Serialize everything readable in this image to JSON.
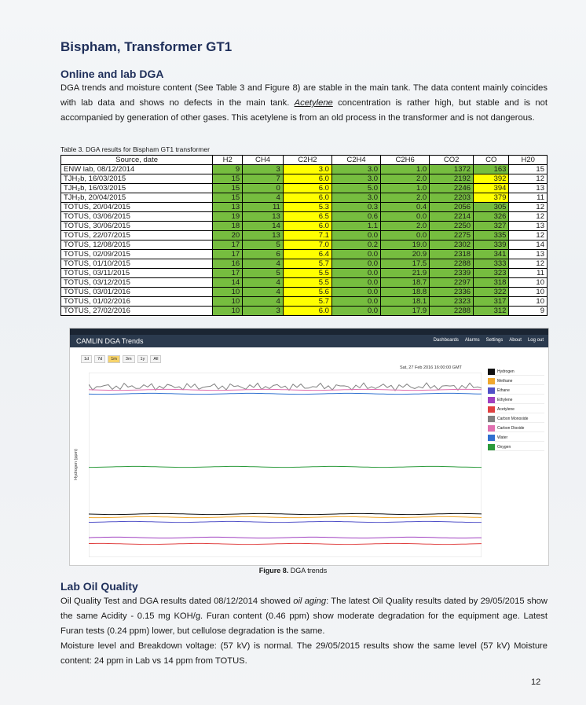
{
  "header": {
    "title": "Bispham, Transformer GT1"
  },
  "online_section": {
    "heading": "Online and lab DGA",
    "paragraph": [
      "DGA trends and moisture content (See Table 3 and Figure 8) are stable in the main tank. The data content mainly coincides with lab data and shows no defects in the main tank. ",
      "Acetylene",
      " concentration is rather high, but stable and is not accompanied by generation of other gases. This acetylene is from an old process in the transformer and is not dangerous."
    ]
  },
  "table": {
    "caption": "Table 3. DGA results for Bispham GT1 transformer",
    "header": [
      "Source, date",
      "H2",
      "CH4",
      "C2H2",
      "C2H4",
      "C2H6",
      "CO2",
      "CO",
      "H20"
    ],
    "column_fills": [
      "#ffffff",
      "#76bd3f",
      "#76bd3f",
      "#ffff00",
      "#76bd3f",
      "#76bd3f",
      "#76bd3f",
      "#76bd3f",
      "#ffffff"
    ],
    "alert_fill": "#ffff00",
    "alert_cells": [
      [
        1,
        7
      ],
      [
        2,
        7
      ],
      [
        3,
        7
      ]
    ],
    "rows": [
      [
        "ENW lab, 08/12/2014",
        "9",
        "3",
        "3.0",
        "3.0",
        "1.0",
        "1372",
        "163",
        "15"
      ],
      [
        "TJH₂b, 16/03/2015",
        "15",
        "7",
        "6.0",
        "3.0",
        "2.0",
        "2192",
        "392",
        "12"
      ],
      [
        "TJH₂b, 16/03/2015",
        "15",
        "0",
        "6.0",
        "5.0",
        "1.0",
        "2246",
        "394",
        "13"
      ],
      [
        "TJH₂b, 20/04/2015",
        "15",
        "4",
        "6.0",
        "3.0",
        "2.0",
        "2203",
        "379",
        "11"
      ],
      [
        "TOTUS, 20/04/2015",
        "13",
        "11",
        "5.3",
        "0.3",
        "0.4",
        "2056",
        "305",
        "12"
      ],
      [
        "TOTUS, 03/06/2015",
        "19",
        "13",
        "6.5",
        "0.6",
        "0.0",
        "2214",
        "326",
        "12"
      ],
      [
        "TOTUS, 30/06/2015",
        "18",
        "14",
        "6.0",
        "1.1",
        "2.0",
        "2250",
        "327",
        "13"
      ],
      [
        "TOTUS, 22/07/2015",
        "20",
        "13",
        "7.1",
        "0.0",
        "0.0",
        "2275",
        "335",
        "12"
      ],
      [
        "TOTUS, 12/08/2015",
        "17",
        "5",
        "7.0",
        "0.2",
        "19.0",
        "2302",
        "339",
        "14"
      ],
      [
        "TOTUS, 02/09/2015",
        "17",
        "6",
        "6.4",
        "0.0",
        "20.9",
        "2318",
        "341",
        "13"
      ],
      [
        "TOTUS, 01/10/2015",
        "16",
        "4",
        "5.7",
        "0.0",
        "17.5",
        "2288",
        "333",
        "12"
      ],
      [
        "TOTUS, 03/11/2015",
        "17",
        "5",
        "5.5",
        "0.0",
        "21.9",
        "2339",
        "323",
        "11"
      ],
      [
        "TOTUS, 03/12/2015",
        "14",
        "4",
        "5.5",
        "0.0",
        "18.7",
        "2297",
        "318",
        "10"
      ],
      [
        "TOTUS, 03/01/2016",
        "10",
        "4",
        "5.6",
        "0.0",
        "18.8",
        "2336",
        "322",
        "10"
      ],
      [
        "TOTUS, 01/02/2016",
        "10",
        "4",
        "5.7",
        "0.0",
        "18.1",
        "2323",
        "317",
        "10"
      ],
      [
        "TOTUS, 27/02/2016",
        "10",
        "3",
        "6.0",
        "0.0",
        "17.9",
        "2288",
        "312",
        "9"
      ]
    ]
  },
  "figure": {
    "app_title": "CAMLIN DGA Trends",
    "nav": [
      "Dashboards",
      "Alarms",
      "Settings",
      "About",
      "Log out"
    ],
    "ranges": [
      "1d",
      "7d",
      "1m",
      "3m",
      "1y",
      "All"
    ],
    "timestamp": "Sat, 27 Feb 2016 16:00:00 GMT",
    "y_label": "Hydrogen (ppm)",
    "legend": [
      {
        "name": "Hydrogen",
        "color": "#111111"
      },
      {
        "name": "Methane",
        "color": "#f0a830"
      },
      {
        "name": "Ethane",
        "color": "#5050c8"
      },
      {
        "name": "Ethylene",
        "color": "#a040c0"
      },
      {
        "name": "Acetylene",
        "color": "#e04040"
      },
      {
        "name": "Carbon Monoxide",
        "color": "#808080"
      },
      {
        "name": "Carbon Dioxide",
        "color": "#e070b0"
      },
      {
        "name": "Water",
        "color": "#3070d0"
      },
      {
        "name": "Oxygen",
        "color": "#2a9a3a"
      }
    ],
    "caption_label": "Figure 8.",
    "caption_text": " DGA trends"
  },
  "oil_section": {
    "heading": "Lab Oil Quality",
    "paragraph_1": [
      "Oil Quality Test and DGA results dated 08/12/2014 showed ",
      "oil aging",
      ": The latest Oil Quality results dated by 29/05/2015 show the same Acidity - 0.15 mg KOH/g. Furan content (0.46 ppm) show moderate degradation for the equipment age. Latest Furan tests (0.24 ppm) lower, but cellulose degradation is the same."
    ],
    "paragraph_2": "Moisture level and Breakdown voltage: (57 kV) is normal. The 29/05/2015 results show the same level (57 kV) Moisture content: 24 ppm in Lab vs 14 ppm from TOTUS."
  },
  "footer": {
    "page_number": "12"
  }
}
